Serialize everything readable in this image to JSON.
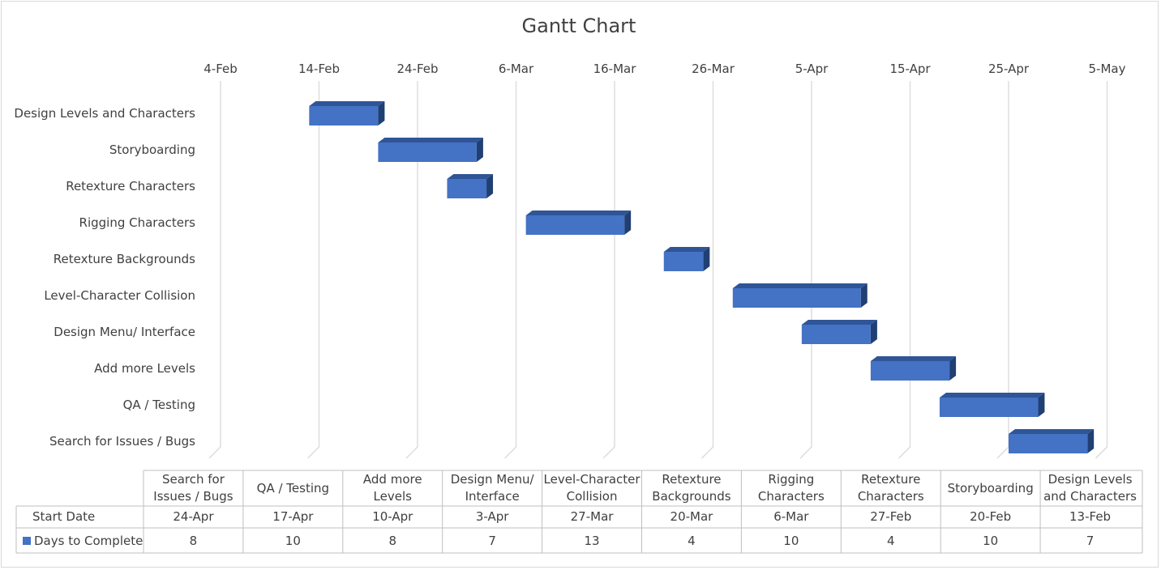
{
  "chart_data": {
    "type": "bar",
    "title": "Gantt Chart",
    "x_axis": {
      "tick_labels": [
        "4-Feb",
        "14-Feb",
        "24-Feb",
        "6-Mar",
        "16-Mar",
        "26-Mar",
        "5-Apr",
        "15-Apr",
        "25-Apr",
        "5-May"
      ],
      "range_days_from_label0": [
        0,
        90
      ],
      "grid": true
    },
    "tasks": [
      {
        "name": "Design Levels and Characters",
        "start": "13-Feb",
        "days": 7
      },
      {
        "name": "Storyboarding",
        "start": "20-Feb",
        "days": 10
      },
      {
        "name": "Retexture Characters",
        "start": "27-Feb",
        "days": 4
      },
      {
        "name": "Rigging Characters",
        "start": "6-Mar",
        "days": 10
      },
      {
        "name": "Retexture Backgrounds",
        "start": "20-Mar",
        "days": 4
      },
      {
        "name": "Level-Character Collision",
        "start": "27-Mar",
        "days": 13
      },
      {
        "name": "Design Menu/ Interface",
        "start": "3-Apr",
        "days": 7
      },
      {
        "name": "Add more Levels",
        "start": "10-Apr",
        "days": 8
      },
      {
        "name": "QA / Testing",
        "start": "17-Apr",
        "days": 10
      },
      {
        "name": "Search for Issues / Bugs",
        "start": "24-Apr",
        "days": 8
      }
    ],
    "series": [
      {
        "name": "Days to Complete",
        "color": "#4472c4"
      }
    ],
    "data_table": {
      "columns": [
        [
          "Search for",
          "Issues / Bugs"
        ],
        [
          "QA / Testing"
        ],
        [
          "Add more",
          "Levels"
        ],
        [
          "Design Menu/",
          "Interface"
        ],
        [
          "Level-Character",
          "Collision"
        ],
        [
          "Retexture",
          "Backgrounds"
        ],
        [
          "Rigging",
          "Characters"
        ],
        [
          "Retexture",
          "Characters"
        ],
        [
          "Storyboarding"
        ],
        [
          "Design Levels",
          "and Characters"
        ]
      ],
      "rows": [
        {
          "label": "Start Date",
          "values": [
            "24-Apr",
            "17-Apr",
            "10-Apr",
            "3-Apr",
            "27-Mar",
            "20-Mar",
            "6-Mar",
            "27-Feb",
            "20-Feb",
            "13-Feb"
          ]
        },
        {
          "label": "Days to Complete",
          "legend_key": true,
          "values": [
            "8",
            "10",
            "8",
            "7",
            "13",
            "4",
            "10",
            "4",
            "10",
            "7"
          ]
        }
      ]
    }
  }
}
